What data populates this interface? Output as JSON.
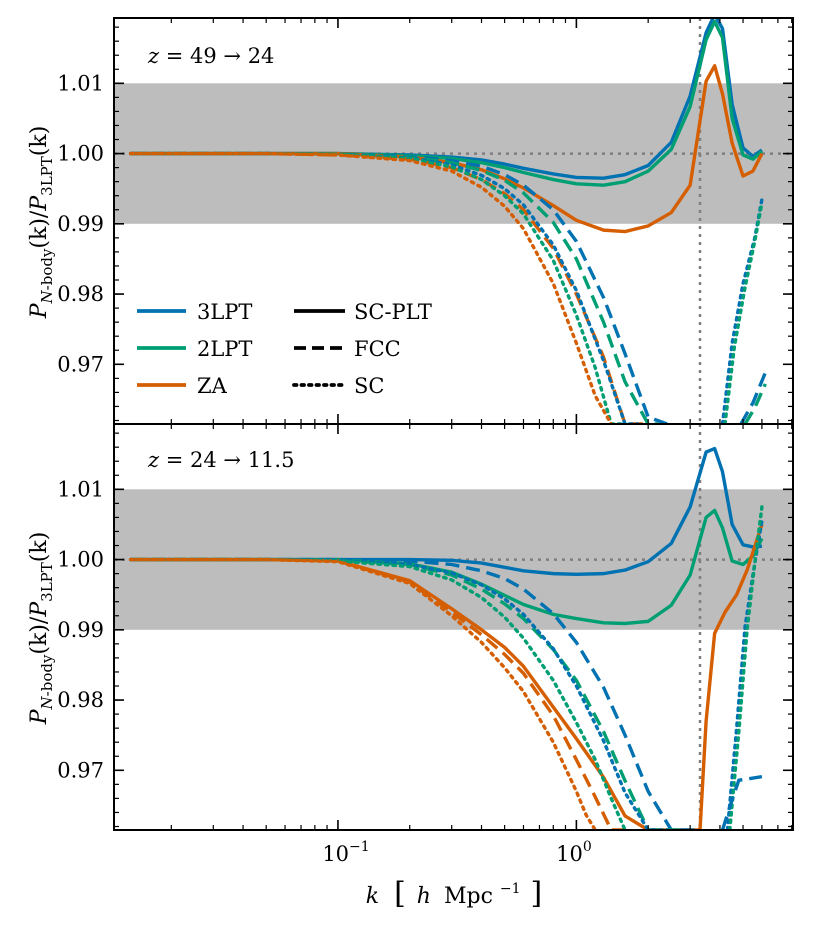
{
  "chart_data": {
    "type": "line",
    "xscale": "log",
    "xlim": [
      0.0115,
      8.1
    ],
    "ylim": [
      0.9615,
      1.0193
    ],
    "x_ticks": [
      {
        "value": 0.1,
        "base": "10",
        "exp": "−1"
      },
      {
        "value": 1,
        "base": "10",
        "exp": "0"
      }
    ],
    "y_ticks": [
      {
        "value": 0.97,
        "label": "0.97"
      },
      {
        "value": 0.98,
        "label": "0.98"
      },
      {
        "value": 0.99,
        "label": "0.99"
      },
      {
        "value": 1.0,
        "label": "1.00"
      },
      {
        "value": 1.01,
        "label": "1.01"
      }
    ],
    "band": [
      0.99,
      1.01
    ],
    "reference_y": 1.0,
    "vline_x": 3.3,
    "xlabel": {
      "k": "k",
      "h": "h",
      "unit": "Mpc",
      "unit_exp": "−1"
    },
    "ylabel": {
      "p": "P",
      "num_sub": "N",
      "num_sub_rest": "-body",
      "num_arg": "(k)",
      "slash": "/",
      "den_sub": "3LPT",
      "den_arg": "(k)"
    },
    "colors": {
      "3LPT": "#0072B2",
      "2LPT": "#009E73",
      "ZA": "#D55E00",
      "band": "#bdbdbd",
      "reference": "#7f7f7f"
    },
    "legend": {
      "placement": "left-middle of top panel",
      "lpt": [
        {
          "key": "3LPT",
          "label": "3LPT"
        },
        {
          "key": "2LPT",
          "label": "2LPT"
        },
        {
          "key": "ZA",
          "label": "ZA"
        }
      ],
      "styles": [
        {
          "key": "solid",
          "label": "SC-PLT"
        },
        {
          "key": "dashed",
          "label": "FCC"
        },
        {
          "key": "dotted",
          "label": "SC"
        }
      ]
    },
    "panels": [
      {
        "label": {
          "z": "z",
          "text": " = 49 → 24"
        },
        "series": [
          {
            "lpt": "3LPT",
            "style": "solid",
            "x": [
              0.0135,
              0.02,
              0.05,
              0.1,
              0.2,
              0.3,
              0.4,
              0.5,
              0.6,
              0.8,
              1.0,
              1.3,
              1.6,
              2.0,
              2.5,
              3.0,
              3.5,
              3.8,
              4.1,
              4.5,
              5.0,
              5.5,
              6.0
            ],
            "y": [
              1.0,
              1.0,
              1.0,
              1.0,
              0.9998,
              0.9995,
              0.9991,
              0.9985,
              0.9979,
              0.9971,
              0.9966,
              0.9965,
              0.997,
              0.9983,
              1.0016,
              1.0082,
              1.0172,
              1.0198,
              1.0178,
              1.007,
              1.0008,
              0.9996,
              1.0005
            ]
          },
          {
            "lpt": "2LPT",
            "style": "solid",
            "x": [
              0.0135,
              0.02,
              0.05,
              0.1,
              0.2,
              0.3,
              0.4,
              0.5,
              0.6,
              0.8,
              1.0,
              1.3,
              1.6,
              2.0,
              2.5,
              3.0,
              3.5,
              3.8,
              4.1,
              4.5,
              5.0,
              5.5,
              6.0
            ],
            "y": [
              1.0,
              1.0,
              1.0,
              1.0,
              0.9997,
              0.9993,
              0.9987,
              0.998,
              0.9973,
              0.9963,
              0.9957,
              0.9955,
              0.996,
              0.9975,
              1.0006,
              1.0067,
              1.0162,
              1.0188,
              1.0165,
              1.005,
              0.9998,
              0.9992,
              1.0003
            ]
          },
          {
            "lpt": "ZA",
            "style": "solid",
            "x": [
              0.0135,
              0.02,
              0.05,
              0.1,
              0.2,
              0.3,
              0.4,
              0.5,
              0.6,
              0.8,
              1.0,
              1.3,
              1.6,
              2.0,
              2.5,
              3.0,
              3.5,
              3.8,
              4.1,
              4.5,
              5.0,
              5.5,
              6.0
            ],
            "y": [
              1.0,
              1.0,
              1.0,
              1.0,
              0.9995,
              0.9987,
              0.9977,
              0.9964,
              0.9951,
              0.9926,
              0.9905,
              0.9891,
              0.9889,
              0.9897,
              0.9916,
              0.9955,
              1.0103,
              1.0125,
              1.0085,
              1.0015,
              0.9968,
              0.9975,
              1.0
            ]
          },
          {
            "lpt": "3LPT",
            "style": "dashed",
            "x": [
              0.0135,
              0.05,
              0.1,
              0.2,
              0.3,
              0.4,
              0.5,
              0.6,
              0.8,
              1.0,
              1.3,
              1.6,
              2.0,
              2.4
            ],
            "y": [
              1.0,
              1.0,
              0.9999,
              0.9996,
              0.999,
              0.9982,
              0.997,
              0.9955,
              0.992,
              0.9875,
              0.9795,
              0.9715,
              0.9625,
              0.9615
            ]
          },
          {
            "lpt": "2LPT",
            "style": "dashed",
            "x": [
              0.0135,
              0.05,
              0.1,
              0.2,
              0.3,
              0.4,
              0.5,
              0.6,
              0.8,
              1.0,
              1.3,
              1.6,
              2.0,
              2.2
            ],
            "y": [
              1.0,
              1.0,
              0.9999,
              0.9995,
              0.9987,
              0.9976,
              0.9962,
              0.9944,
              0.9902,
              0.985,
              0.976,
              0.9675,
              0.9615,
              0.9615
            ]
          },
          {
            "lpt": "ZA",
            "style": "dashed",
            "x": [
              0.0135,
              0.05,
              0.1,
              0.2,
              0.3,
              0.4,
              0.5,
              0.6,
              0.8,
              1.0,
              1.3,
              1.6,
              1.9
            ],
            "y": [
              1.0,
              1.0,
              0.9998,
              0.9992,
              0.998,
              0.9963,
              0.9943,
              0.992,
              0.9865,
              0.98,
              0.971,
              0.9615,
              0.9615
            ]
          },
          {
            "lpt": "3LPT",
            "style": "dotted",
            "x": [
              0.0135,
              0.05,
              0.1,
              0.2,
              0.3,
              0.4,
              0.5,
              0.6,
              0.8,
              1.0,
              1.3,
              1.6,
              1.8
            ],
            "y": [
              1.0,
              1.0,
              0.9999,
              0.9994,
              0.9984,
              0.9969,
              0.995,
              0.9927,
              0.987,
              0.9805,
              0.9705,
              0.9615,
              0.9615
            ]
          },
          {
            "lpt": "2LPT",
            "style": "dotted",
            "x": [
              0.0135,
              0.05,
              0.1,
              0.2,
              0.3,
              0.4,
              0.5,
              0.6,
              0.8,
              1.0,
              1.2,
              1.4,
              1.6
            ],
            "y": [
              1.0,
              1.0,
              0.9999,
              0.9993,
              0.9981,
              0.9963,
              0.994,
              0.9914,
              0.9848,
              0.977,
              0.9695,
              0.9615,
              0.9615
            ]
          },
          {
            "lpt": "ZA",
            "style": "dotted",
            "x": [
              0.0135,
              0.05,
              0.1,
              0.2,
              0.3,
              0.4,
              0.5,
              0.6,
              0.8,
              1.0,
              1.2,
              1.4
            ],
            "y": [
              1.0,
              1.0,
              0.9998,
              0.999,
              0.9975,
              0.9952,
              0.9925,
              0.9893,
              0.9815,
              0.973,
              0.9655,
              0.9615
            ]
          },
          {
            "lpt": "3LPT",
            "style": "dotted",
            "x": [
              4.1,
              4.5,
              5.0,
              5.6,
              6.0
            ],
            "y": [
              0.9615,
              0.973,
              0.9815,
              0.988,
              0.9935
            ]
          },
          {
            "lpt": "2LPT",
            "style": "dotted",
            "x": [
              4.2,
              4.6,
              5.1,
              5.6,
              6.0
            ],
            "y": [
              0.9615,
              0.9725,
              0.981,
              0.9875,
              0.993
            ]
          },
          {
            "lpt": "3LPT",
            "style": "dashed",
            "x": [
              4.9,
              5.5,
              6.2
            ],
            "y": [
              0.9615,
              0.9645,
              0.9688
            ]
          },
          {
            "lpt": "2LPT",
            "style": "dashed",
            "x": [
              5.1,
              5.6,
              6.2
            ],
            "y": [
              0.9615,
              0.9638,
              0.9672
            ]
          }
        ]
      },
      {
        "label": {
          "z": "z",
          "text": " = 24 → 11.5"
        },
        "series": [
          {
            "lpt": "3LPT",
            "style": "solid",
            "x": [
              0.0135,
              0.02,
              0.05,
              0.1,
              0.2,
              0.3,
              0.4,
              0.5,
              0.6,
              0.8,
              1.0,
              1.3,
              1.6,
              2.0,
              2.5,
              3.0,
              3.5,
              3.8,
              4.1,
              4.5,
              5.0,
              5.5,
              6.0
            ],
            "y": [
              1.0,
              1.0,
              1.0,
              1.0,
              1.0,
              0.9999,
              0.9995,
              0.9989,
              0.9984,
              0.998,
              0.9979,
              0.998,
              0.9985,
              0.9997,
              1.0023,
              1.0075,
              1.0153,
              1.0158,
              1.0125,
              1.005,
              1.0021,
              1.0018,
              1.0019
            ]
          },
          {
            "lpt": "2LPT",
            "style": "solid",
            "x": [
              0.0135,
              0.02,
              0.05,
              0.1,
              0.2,
              0.3,
              0.4,
              0.5,
              0.6,
              0.8,
              1.0,
              1.3,
              1.6,
              2.0,
              2.5,
              3.0,
              3.5,
              3.8,
              4.1,
              4.5,
              5.0,
              5.5,
              6.0
            ],
            "y": [
              1.0,
              1.0,
              1.0,
              1.0,
              0.9994,
              0.9982,
              0.9965,
              0.9949,
              0.9936,
              0.9922,
              0.9916,
              0.991,
              0.9909,
              0.9912,
              0.9935,
              0.9978,
              1.006,
              1.007,
              1.0045,
              0.9998,
              0.9993,
              1.0005,
              1.003
            ]
          },
          {
            "lpt": "ZA",
            "style": "solid",
            "x": [
              0.0135,
              0.02,
              0.05,
              0.1,
              0.2,
              0.3,
              0.4,
              0.5,
              0.6,
              0.8,
              1.0,
              1.3,
              1.6,
              2.0,
              2.5,
              2.9,
              3.1,
              3.3,
              3.5,
              3.8,
              4.2,
              4.7,
              5.2,
              6.0
            ],
            "y": [
              1.0,
              1.0,
              1.0,
              0.9998,
              0.997,
              0.993,
              0.99,
              0.9875,
              0.9848,
              0.979,
              0.9745,
              0.969,
              0.9635,
              0.9615,
              0.9615,
              0.9615,
              0.9615,
              0.9615,
              0.977,
              0.9895,
              0.9925,
              0.995,
              0.9985,
              1.005
            ]
          },
          {
            "lpt": "3LPT",
            "style": "dashed",
            "x": [
              0.0135,
              0.05,
              0.1,
              0.2,
              0.3,
              0.4,
              0.5,
              0.6,
              0.8,
              1.0,
              1.3,
              1.6,
              2.0,
              2.5,
              3.0,
              3.2
            ],
            "y": [
              1.0,
              1.0,
              1.0,
              0.9998,
              0.9993,
              0.9984,
              0.9973,
              0.9958,
              0.9923,
              0.9882,
              0.9818,
              0.975,
              0.967,
              0.9615,
              0.9615,
              0.9615
            ]
          },
          {
            "lpt": "2LPT",
            "style": "dashed",
            "x": [
              0.0135,
              0.05,
              0.1,
              0.2,
              0.3,
              0.4,
              0.5,
              0.6,
              0.8,
              1.0,
              1.3,
              1.6,
              2.0,
              2.5,
              2.8
            ],
            "y": [
              1.0,
              1.0,
              0.9999,
              0.9993,
              0.9978,
              0.9958,
              0.9937,
              0.9916,
              0.9872,
              0.9828,
              0.9755,
              0.9685,
              0.9615,
              0.9615,
              0.9615
            ]
          },
          {
            "lpt": "ZA",
            "style": "dashed",
            "x": [
              0.0135,
              0.05,
              0.1,
              0.2,
              0.3,
              0.4,
              0.5,
              0.6,
              0.8,
              1.0,
              1.2,
              1.4,
              1.6
            ],
            "y": [
              1.0,
              1.0,
              0.9998,
              0.9968,
              0.9925,
              0.9893,
              0.9865,
              0.9838,
              0.9778,
              0.9715,
              0.9662,
              0.9615,
              0.9615
            ]
          },
          {
            "lpt": "3LPT",
            "style": "dotted",
            "x": [
              0.0135,
              0.05,
              0.1,
              0.2,
              0.3,
              0.4,
              0.5,
              0.6,
              0.8,
              1.0,
              1.3,
              1.6,
              2.0,
              2.4
            ],
            "y": [
              1.0,
              1.0,
              0.9999,
              0.9993,
              0.9981,
              0.9964,
              0.9944,
              0.9922,
              0.9873,
              0.982,
              0.9742,
              0.9668,
              0.9615,
              0.9615
            ]
          },
          {
            "lpt": "2LPT",
            "style": "dotted",
            "x": [
              0.0135,
              0.05,
              0.1,
              0.2,
              0.3,
              0.4,
              0.5,
              0.6,
              0.8,
              1.0,
              1.2,
              1.4,
              1.6
            ],
            "y": [
              1.0,
              1.0,
              0.9998,
              0.999,
              0.9971,
              0.9946,
              0.9918,
              0.9888,
              0.9828,
              0.9768,
              0.9715,
              0.966,
              0.9615
            ]
          },
          {
            "lpt": "ZA",
            "style": "dotted",
            "x": [
              0.0135,
              0.05,
              0.1,
              0.2,
              0.3,
              0.4,
              0.5,
              0.6,
              0.8,
              1.0,
              1.1,
              1.2
            ],
            "y": [
              1.0,
              1.0,
              0.9997,
              0.9966,
              0.992,
              0.9882,
              0.9846,
              0.9812,
              0.974,
              0.967,
              0.9636,
              0.9615
            ]
          },
          {
            "lpt": "3LPT",
            "style": "dotted",
            "x": [
              4.3,
              4.7,
              5.1,
              5.6,
              6.0
            ],
            "y": [
              0.9615,
              0.976,
              0.9905,
              0.9995,
              1.0055
            ]
          },
          {
            "lpt": "2LPT",
            "style": "dotted",
            "x": [
              4.4,
              4.8,
              5.2,
              5.6,
              6.0
            ],
            "y": [
              0.9615,
              0.9755,
              0.99,
              0.9995,
              1.0075
            ]
          },
          {
            "lpt": "3LPT",
            "style": "dashed",
            "x": [
              4.1,
              4.4,
              4.8,
              5.3,
              6.0
            ],
            "y": [
              0.9615,
              0.9648,
              0.9686,
              0.9688,
              0.9691
            ]
          }
        ]
      }
    ]
  }
}
